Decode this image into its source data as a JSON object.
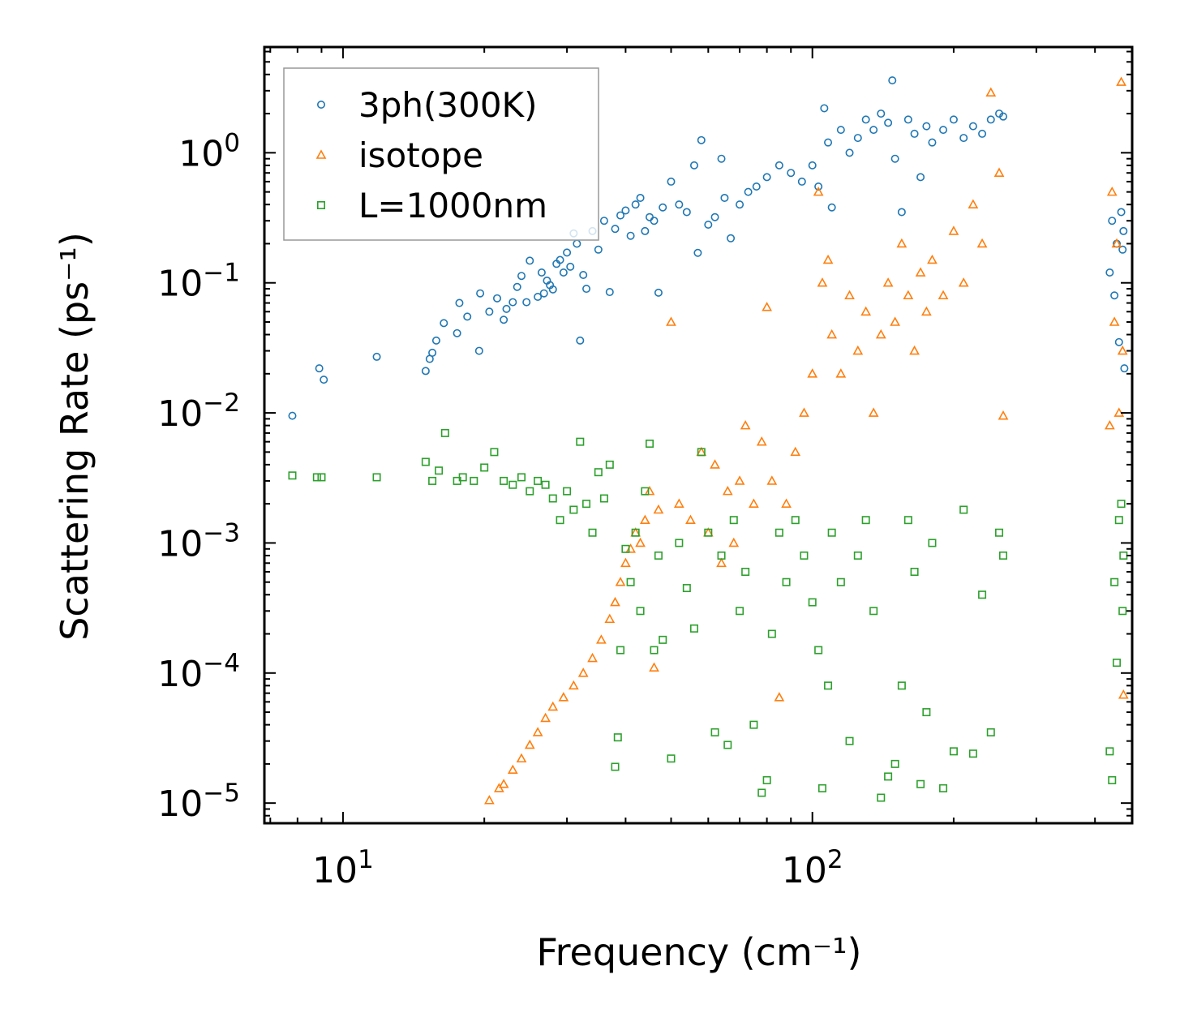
{
  "chart_data": {
    "type": "scatter",
    "xlabel": "Frequency (cm⁻¹)",
    "ylabel": "Scattering Rate (ps⁻¹)",
    "xscale": "log",
    "yscale": "log",
    "xlim": [
      6.8,
      480
    ],
    "ylim": [
      7e-06,
      6.5
    ],
    "xticks": [
      {
        "value": 10,
        "base": "10",
        "exp": "1"
      },
      {
        "value": 100,
        "base": "10",
        "exp": "2"
      }
    ],
    "yticks": [
      {
        "value": 1,
        "base": "10",
        "exp": "0"
      },
      {
        "value": 0.1,
        "base": "10",
        "exp": "−1"
      },
      {
        "value": 0.01,
        "base": "10",
        "exp": "−2"
      },
      {
        "value": 0.001,
        "base": "10",
        "exp": "−3"
      },
      {
        "value": 0.0001,
        "base": "10",
        "exp": "−4"
      },
      {
        "value": 1e-05,
        "base": "10",
        "exp": "−5"
      }
    ],
    "legend_position": "top-left",
    "series": [
      {
        "name": "3ph(300K)",
        "marker": "circle",
        "color": "#1f77b4",
        "points": [
          [
            7.8,
            0.0095
          ],
          [
            8.9,
            0.022
          ],
          [
            9.1,
            0.018
          ],
          [
            11.8,
            0.027
          ],
          [
            15.0,
            0.021
          ],
          [
            15.3,
            0.026
          ],
          [
            15.5,
            0.029
          ],
          [
            15.8,
            0.036
          ],
          [
            16.4,
            0.049
          ],
          [
            17.5,
            0.041
          ],
          [
            17.7,
            0.07
          ],
          [
            18.4,
            0.055
          ],
          [
            19.5,
            0.03
          ],
          [
            19.6,
            0.083
          ],
          [
            20.5,
            0.06
          ],
          [
            21.3,
            0.076
          ],
          [
            22.0,
            0.052
          ],
          [
            22.3,
            0.063
          ],
          [
            23.0,
            0.071
          ],
          [
            23.5,
            0.093
          ],
          [
            24.0,
            0.113
          ],
          [
            24.6,
            0.071
          ],
          [
            25.0,
            0.148
          ],
          [
            26.0,
            0.078
          ],
          [
            26.5,
            0.12
          ],
          [
            26.8,
            0.083
          ],
          [
            27.2,
            0.104
          ],
          [
            27.6,
            0.096
          ],
          [
            28.0,
            0.089
          ],
          [
            28.5,
            0.14
          ],
          [
            29.0,
            0.15
          ],
          [
            29.5,
            0.12
          ],
          [
            30.0,
            0.171
          ],
          [
            30.5,
            0.133
          ],
          [
            31.0,
            0.24
          ],
          [
            31.5,
            0.2
          ],
          [
            32.0,
            0.036
          ],
          [
            32.5,
            0.115
          ],
          [
            33.0,
            0.09
          ],
          [
            34.0,
            0.25
          ],
          [
            35.0,
            0.18
          ],
          [
            36.0,
            0.3
          ],
          [
            37.0,
            0.085
          ],
          [
            38.0,
            0.26
          ],
          [
            39.0,
            0.33
          ],
          [
            40.0,
            0.36
          ],
          [
            41.0,
            0.23
          ],
          [
            42.0,
            0.4
          ],
          [
            43.0,
            0.45
          ],
          [
            44.0,
            0.25
          ],
          [
            45.0,
            0.32
          ],
          [
            46.0,
            0.3
          ],
          [
            47.0,
            0.084
          ],
          [
            48.0,
            0.38
          ],
          [
            50.0,
            0.6
          ],
          [
            52.0,
            0.4
          ],
          [
            54.0,
            0.35
          ],
          [
            56.0,
            0.8
          ],
          [
            57.0,
            0.17
          ],
          [
            58.0,
            1.25
          ],
          [
            60.0,
            0.28
          ],
          [
            62.0,
            0.32
          ],
          [
            64.0,
            0.9
          ],
          [
            65.0,
            0.45
          ],
          [
            67.0,
            0.22
          ],
          [
            70.0,
            0.4
          ],
          [
            73.0,
            0.5
          ],
          [
            76.0,
            0.55
          ],
          [
            80.0,
            0.65
          ],
          [
            85.0,
            0.8
          ],
          [
            90.0,
            0.7
          ],
          [
            95.0,
            0.6
          ],
          [
            100.0,
            0.8
          ],
          [
            103.0,
            0.55
          ],
          [
            106.0,
            2.2
          ],
          [
            108.0,
            1.2
          ],
          [
            110.0,
            0.38
          ],
          [
            115.0,
            1.5
          ],
          [
            120.0,
            1.0
          ],
          [
            125.0,
            1.3
          ],
          [
            130.0,
            1.8
          ],
          [
            135.0,
            1.5
          ],
          [
            140.0,
            2.0
          ],
          [
            145.0,
            1.7
          ],
          [
            148.0,
            3.6
          ],
          [
            150.0,
            0.9
          ],
          [
            155.0,
            0.35
          ],
          [
            160.0,
            1.8
          ],
          [
            165.0,
            1.4
          ],
          [
            170.0,
            0.65
          ],
          [
            175.0,
            1.6
          ],
          [
            180.0,
            1.2
          ],
          [
            190.0,
            1.5
          ],
          [
            200.0,
            1.8
          ],
          [
            210.0,
            1.3
          ],
          [
            220.0,
            1.6
          ],
          [
            230.0,
            1.4
          ],
          [
            240.0,
            1.8
          ],
          [
            250.0,
            2.0
          ],
          [
            255.0,
            1.9
          ],
          [
            430.0,
            0.12
          ],
          [
            435.0,
            0.3
          ],
          [
            440.0,
            0.08
          ],
          [
            445.0,
            0.2
          ],
          [
            450.0,
            0.035
          ],
          [
            455.0,
            0.35
          ],
          [
            458.0,
            0.18
          ],
          [
            460.0,
            0.25
          ],
          [
            462.0,
            0.022
          ]
        ]
      },
      {
        "name": "isotope",
        "marker": "triangle",
        "color": "#ff7f0e",
        "points": [
          [
            20.5,
            1.05e-05
          ],
          [
            21.5,
            1.3e-05
          ],
          [
            22.0,
            1.4e-05
          ],
          [
            23.0,
            1.8e-05
          ],
          [
            24.0,
            2.2e-05
          ],
          [
            25.0,
            2.8e-05
          ],
          [
            26.0,
            3.5e-05
          ],
          [
            27.0,
            4.5e-05
          ],
          [
            28.0,
            5.5e-05
          ],
          [
            29.5,
            6.5e-05
          ],
          [
            31.0,
            8e-05
          ],
          [
            32.5,
            0.0001
          ],
          [
            34.0,
            0.00013
          ],
          [
            35.5,
            0.00018
          ],
          [
            37.0,
            0.00026
          ],
          [
            38.0,
            0.00035
          ],
          [
            39.0,
            0.0005
          ],
          [
            40.0,
            0.0007
          ],
          [
            41.0,
            0.0009
          ],
          [
            42.0,
            0.0012
          ],
          [
            43.0,
            0.001
          ],
          [
            44.0,
            0.0015
          ],
          [
            45.0,
            0.0025
          ],
          [
            46.0,
            0.00011
          ],
          [
            47.0,
            0.0018
          ],
          [
            50.0,
            0.05
          ],
          [
            52.0,
            0.002
          ],
          [
            55.0,
            0.0015
          ],
          [
            58.0,
            0.005
          ],
          [
            60.0,
            0.0012
          ],
          [
            62.0,
            0.004
          ],
          [
            64.0,
            0.0007
          ],
          [
            66.0,
            0.0025
          ],
          [
            68.0,
            0.001
          ],
          [
            70.0,
            0.003
          ],
          [
            72.0,
            0.008
          ],
          [
            75.0,
            0.002
          ],
          [
            78.0,
            0.006
          ],
          [
            80.0,
            0.065
          ],
          [
            82.0,
            0.003
          ],
          [
            85.0,
            6.5e-05
          ],
          [
            88.0,
            0.002
          ],
          [
            92.0,
            0.005
          ],
          [
            96.0,
            0.01
          ],
          [
            100.0,
            0.02
          ],
          [
            103.0,
            0.5
          ],
          [
            105.0,
            0.1
          ],
          [
            108.0,
            0.15
          ],
          [
            110.0,
            0.04
          ],
          [
            115.0,
            0.02
          ],
          [
            120.0,
            0.08
          ],
          [
            125.0,
            0.03
          ],
          [
            130.0,
            0.06
          ],
          [
            135.0,
            0.01
          ],
          [
            140.0,
            0.04
          ],
          [
            145.0,
            0.1
          ],
          [
            150.0,
            0.05
          ],
          [
            155.0,
            0.2
          ],
          [
            160.0,
            0.08
          ],
          [
            165.0,
            0.03
          ],
          [
            170.0,
            0.12
          ],
          [
            175.0,
            0.06
          ],
          [
            180.0,
            0.15
          ],
          [
            190.0,
            0.08
          ],
          [
            200.0,
            0.25
          ],
          [
            210.0,
            0.1
          ],
          [
            220.0,
            0.4
          ],
          [
            230.0,
            0.2
          ],
          [
            240.0,
            2.9
          ],
          [
            250.0,
            0.7
          ],
          [
            255.0,
            0.0095
          ],
          [
            430.0,
            0.008
          ],
          [
            435.0,
            0.5
          ],
          [
            440.0,
            0.05
          ],
          [
            445.0,
            0.2
          ],
          [
            450.0,
            0.01
          ],
          [
            455.0,
            3.5
          ],
          [
            458.0,
            0.03
          ],
          [
            460.0,
            6.8e-05
          ]
        ]
      },
      {
        "name": "L=1000nm",
        "marker": "square",
        "color": "#2ca02c",
        "points": [
          [
            7.8,
            0.0033
          ],
          [
            8.8,
            0.0032
          ],
          [
            9.0,
            0.0032
          ],
          [
            11.8,
            0.0032
          ],
          [
            15.0,
            0.0042
          ],
          [
            15.5,
            0.003
          ],
          [
            16.0,
            0.0036
          ],
          [
            16.5,
            0.007
          ],
          [
            17.5,
            0.003
          ],
          [
            18.0,
            0.0032
          ],
          [
            19.0,
            0.003
          ],
          [
            20.0,
            0.0038
          ],
          [
            21.0,
            0.005
          ],
          [
            22.0,
            0.003
          ],
          [
            23.0,
            0.0028
          ],
          [
            24.0,
            0.0032
          ],
          [
            25.0,
            0.0025
          ],
          [
            26.0,
            0.003
          ],
          [
            27.0,
            0.0028
          ],
          [
            28.0,
            0.0022
          ],
          [
            29.0,
            0.0015
          ],
          [
            30.0,
            0.0025
          ],
          [
            31.0,
            0.0018
          ],
          [
            32.0,
            0.006
          ],
          [
            33.0,
            0.002
          ],
          [
            34.0,
            0.0012
          ],
          [
            35.0,
            0.0035
          ],
          [
            36.0,
            0.0022
          ],
          [
            37.0,
            0.004
          ],
          [
            38.0,
            1.9e-05
          ],
          [
            38.5,
            3.2e-05
          ],
          [
            39.0,
            0.00015
          ],
          [
            40.0,
            0.0009
          ],
          [
            41.0,
            0.0005
          ],
          [
            42.0,
            0.0012
          ],
          [
            43.0,
            0.0003
          ],
          [
            44.0,
            0.0025
          ],
          [
            45.0,
            0.0058
          ],
          [
            46.0,
            0.00015
          ],
          [
            47.0,
            0.0008
          ],
          [
            48.0,
            0.00018
          ],
          [
            50.0,
            2.2e-05
          ],
          [
            52.0,
            0.001
          ],
          [
            54.0,
            0.00045
          ],
          [
            56.0,
            0.00022
          ],
          [
            58.0,
            0.005
          ],
          [
            60.0,
            0.0012
          ],
          [
            62.0,
            3.5e-05
          ],
          [
            64.0,
            0.0008
          ],
          [
            66.0,
            2.8e-05
          ],
          [
            68.0,
            0.0015
          ],
          [
            70.0,
            0.0003
          ],
          [
            72.0,
            0.0006
          ],
          [
            75.0,
            4e-05
          ],
          [
            78.0,
            1.2e-05
          ],
          [
            80.0,
            1.5e-05
          ],
          [
            82.0,
            0.0002
          ],
          [
            85.0,
            0.0012
          ],
          [
            88.0,
            0.0005
          ],
          [
            92.0,
            0.0015
          ],
          [
            96.0,
            0.0008
          ],
          [
            100.0,
            0.00035
          ],
          [
            103.0,
            0.00015
          ],
          [
            105.0,
            1.3e-05
          ],
          [
            108.0,
            8e-05
          ],
          [
            110.0,
            0.0012
          ],
          [
            115.0,
            0.0005
          ],
          [
            120.0,
            3e-05
          ],
          [
            125.0,
            0.0008
          ],
          [
            130.0,
            0.0015
          ],
          [
            135.0,
            0.0003
          ],
          [
            140.0,
            1.1e-05
          ],
          [
            145.0,
            1.6e-05
          ],
          [
            150.0,
            2e-05
          ],
          [
            155.0,
            8e-05
          ],
          [
            160.0,
            0.0015
          ],
          [
            165.0,
            0.0006
          ],
          [
            170.0,
            1.4e-05
          ],
          [
            175.0,
            5e-05
          ],
          [
            180.0,
            0.001
          ],
          [
            190.0,
            1.3e-05
          ],
          [
            200.0,
            2.5e-05
          ],
          [
            210.0,
            0.0018
          ],
          [
            220.0,
            2.4e-05
          ],
          [
            230.0,
            0.0004
          ],
          [
            240.0,
            3.5e-05
          ],
          [
            250.0,
            0.0012
          ],
          [
            255.0,
            0.0008
          ],
          [
            430.0,
            2.5e-05
          ],
          [
            435.0,
            1.5e-05
          ],
          [
            440.0,
            0.0005
          ],
          [
            445.0,
            0.00012
          ],
          [
            450.0,
            0.0015
          ],
          [
            455.0,
            0.002
          ],
          [
            458.0,
            0.0003
          ],
          [
            460.0,
            0.0008
          ]
        ]
      }
    ]
  }
}
